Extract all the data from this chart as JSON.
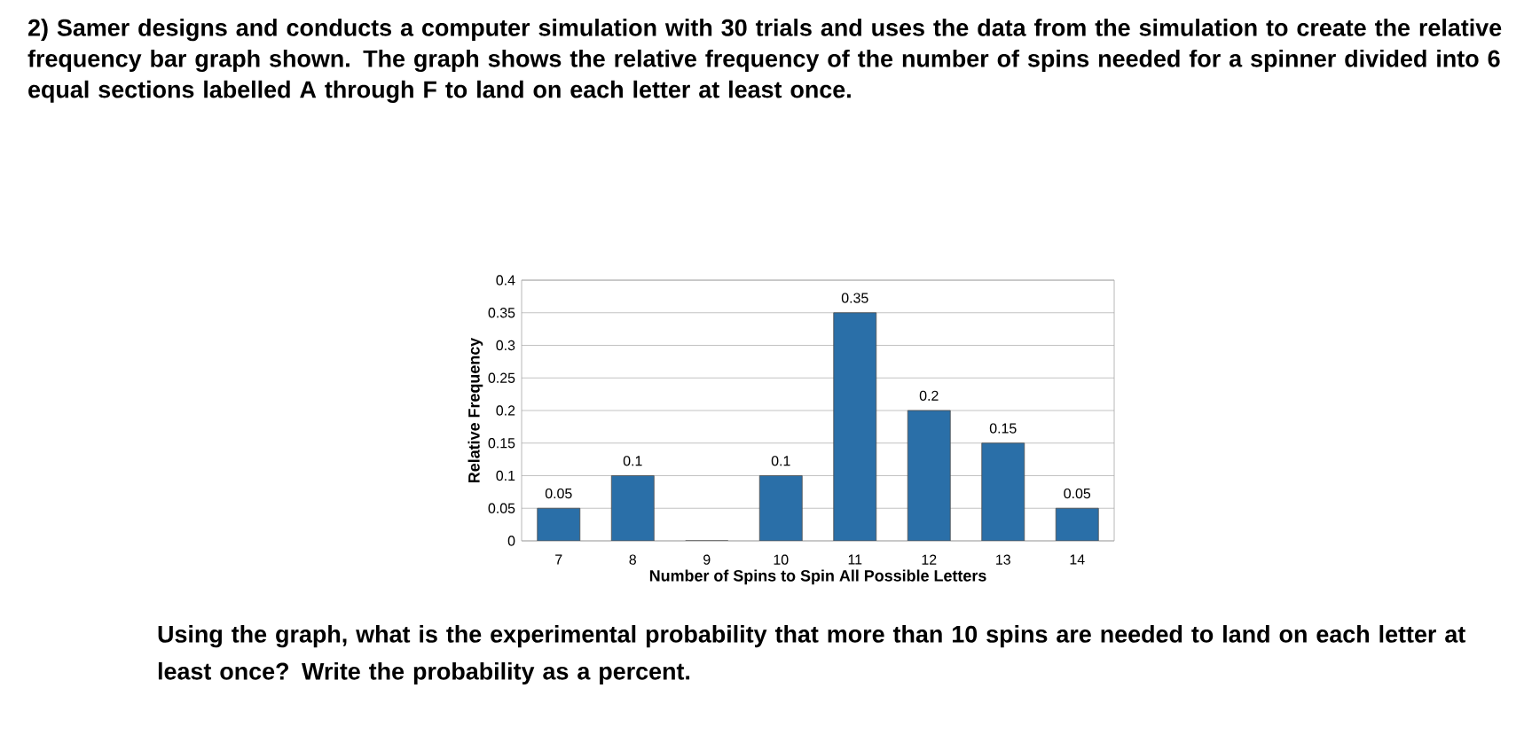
{
  "chart_data": {
    "type": "bar",
    "title": "2) Samer designs and conducts a computer simulation with 30 trials and uses the data from the simulation to create the relative frequency bar graph shown. The graph shows the relative frequency of the number of spins needed for a spinner divided into 6 equal sections labelled A through F to land on each letter at least once.",
    "xlabel": "Number of Spins to Spin All Possible Letters",
    "ylabel": "Relative Frequency",
    "categories": [
      "7",
      "8",
      "9",
      "10",
      "11",
      "12",
      "13",
      "14"
    ],
    "values": [
      0.05,
      0.1,
      0,
      0.1,
      0.35,
      0.2,
      0.15,
      0.05
    ],
    "value_labels": [
      "0.05",
      "0.1",
      null,
      "0.1",
      "0.35",
      "0.2",
      "0.15",
      "0.05"
    ],
    "color": "#2a6fa8",
    "ylim": [
      0,
      0.4
    ],
    "yticks": [
      0,
      0.05,
      0.1,
      0.15,
      0.2,
      0.25,
      0.3,
      0.35,
      0.4
    ],
    "grid": "y",
    "annotations": [
      "Using the graph, what is the experimental probability that more than 10 spins are needed to land on each letter at least once? Write the probability as a percent."
    ]
  }
}
